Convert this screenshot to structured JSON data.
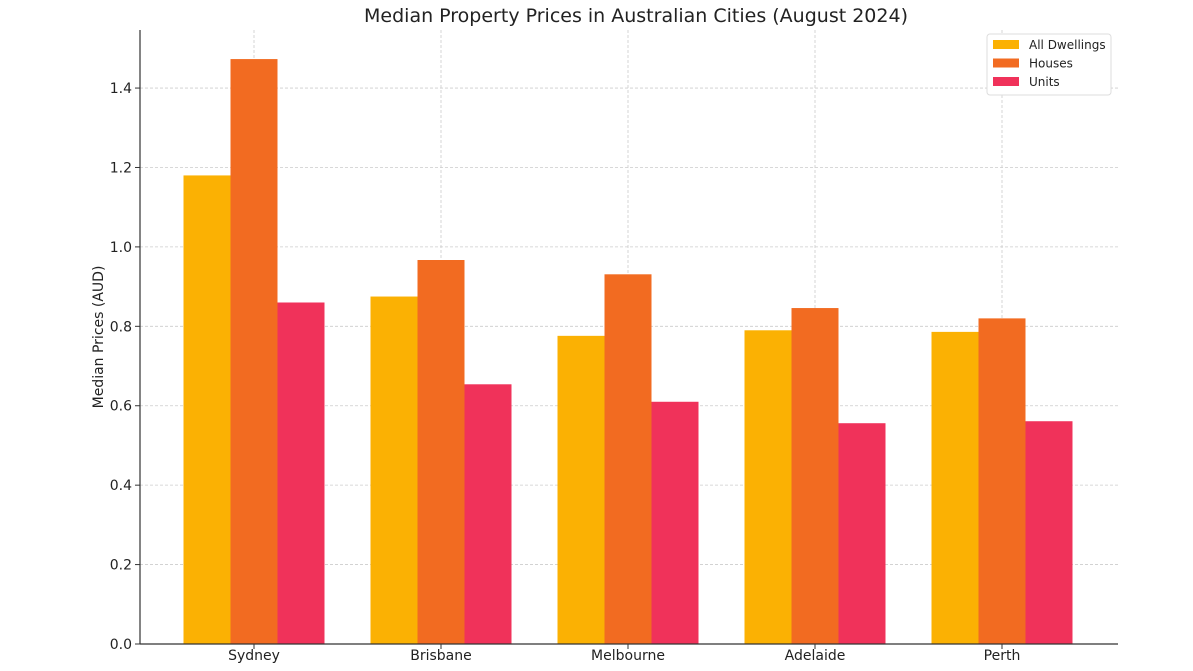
{
  "chart_data": {
    "type": "bar",
    "title": "Median Property Prices in Australian Cities (August 2024)",
    "xlabel": "",
    "ylabel": "Median Prices (AUD)",
    "ylim": [
      0,
      1.55
    ],
    "yticks": [
      "0.0",
      "0.2",
      "0.4",
      "0.6",
      "0.8",
      "1.0",
      "1.2",
      "1.4"
    ],
    "grid": true,
    "legend_position": "top-right",
    "categories": [
      "Sydney",
      "Brisbane",
      "Melbourne",
      "Adelaide",
      "Perth"
    ],
    "series": [
      {
        "name": "All Dwellings",
        "color": "#FBB103",
        "values": [
          1.18,
          0.875,
          0.776,
          0.79,
          0.786
        ]
      },
      {
        "name": "Houses",
        "color": "#F26B21",
        "values": [
          1.473,
          0.967,
          0.931,
          0.846,
          0.82
        ]
      },
      {
        "name": "Units",
        "color": "#F0325A",
        "values": [
          0.86,
          0.654,
          0.61,
          0.556,
          0.561
        ]
      }
    ]
  }
}
